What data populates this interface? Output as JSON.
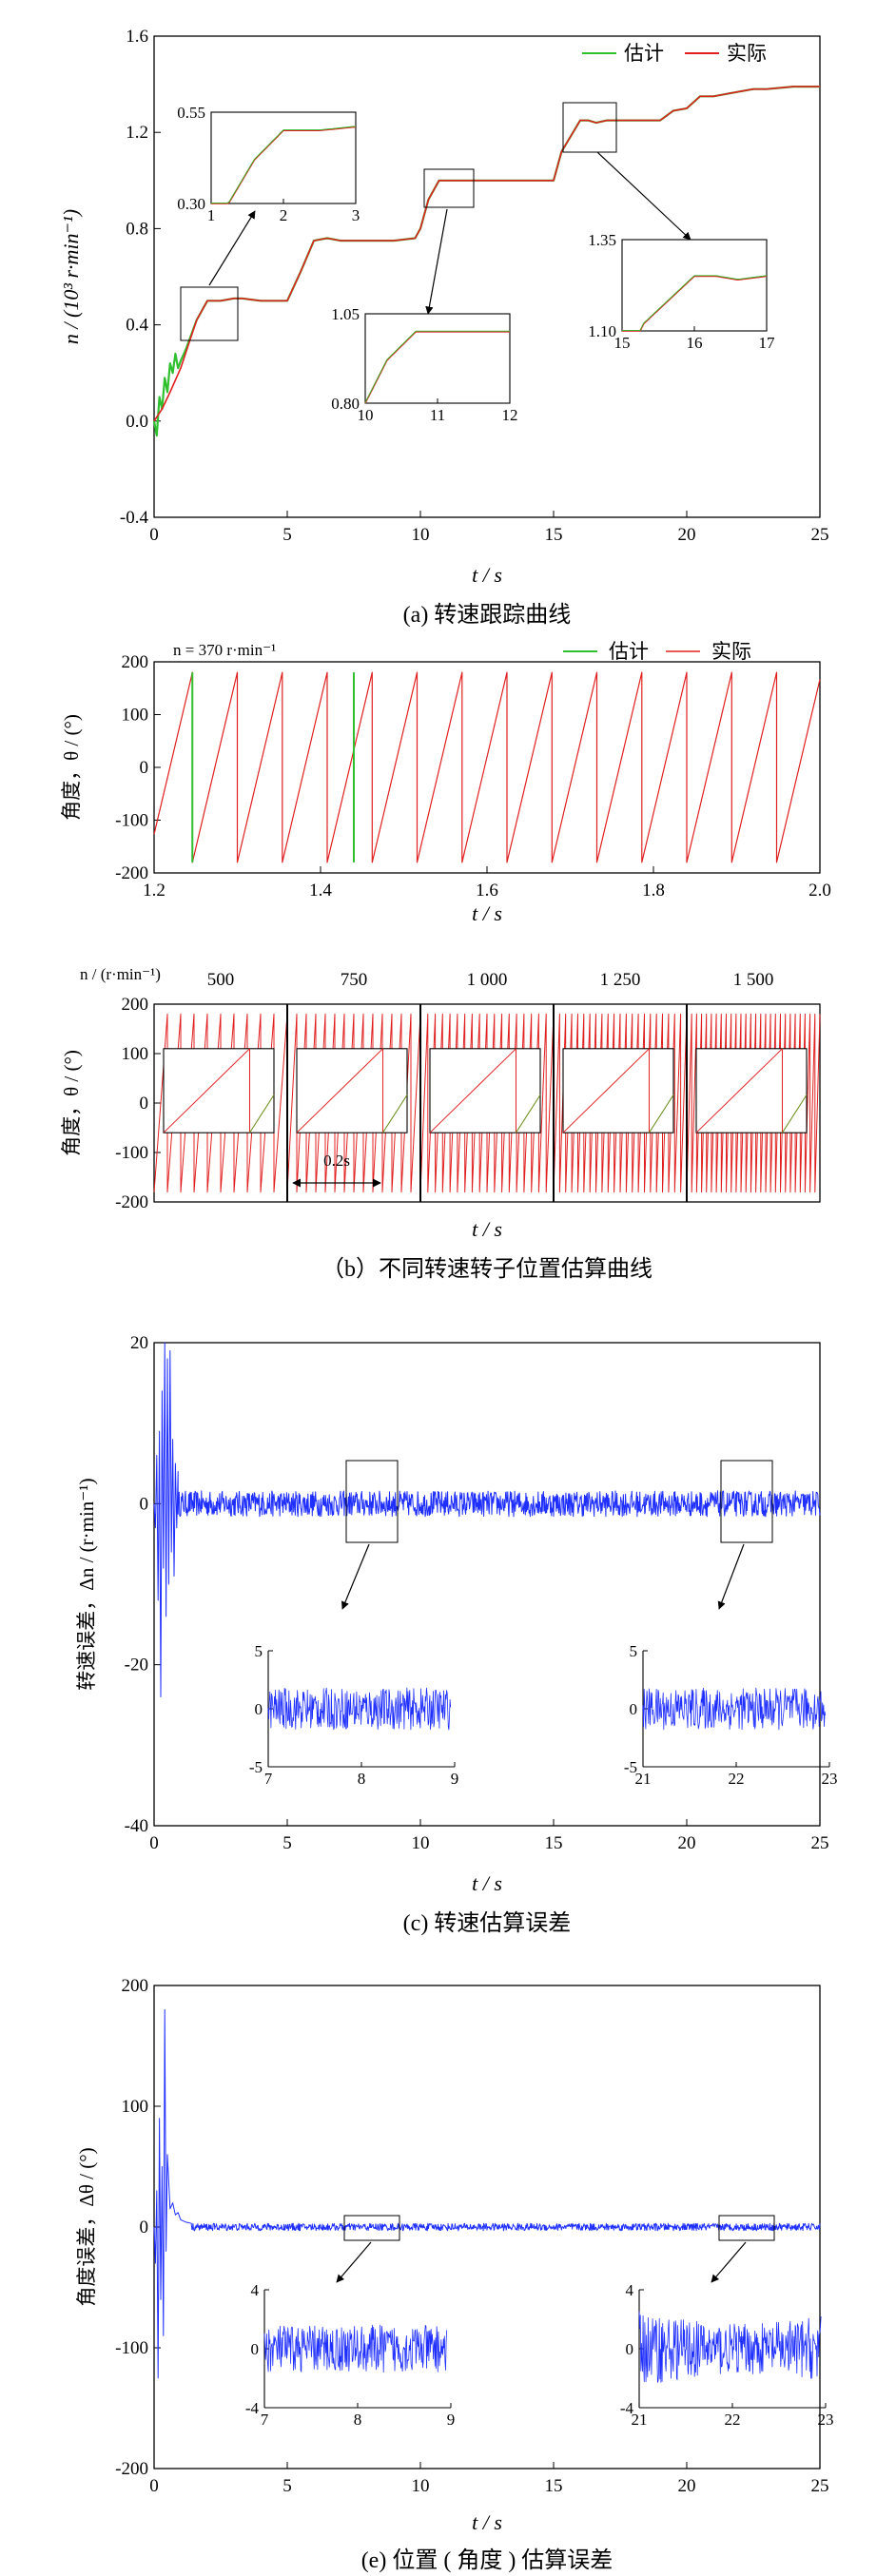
{
  "chart_data": [
    {
      "id": "speed_tracking",
      "type": "line",
      "caption": "(a)  转速跟踪曲线",
      "xlabel": "t / s",
      "ylabel": "n / (10³ r·min⁻¹)",
      "xlim": [
        0,
        25
      ],
      "ylim": [
        -0.4,
        1.6
      ],
      "xticks": [
        "0",
        "5",
        "10",
        "15",
        "20",
        "25"
      ],
      "yticks": [
        "-0.4",
        "0.0",
        "0.4",
        "0.8",
        "1.2",
        "1.6"
      ],
      "legend": {
        "position": "top-right",
        "entries": [
          "估计",
          "实际"
        ]
      },
      "series": [
        {
          "name": "估计",
          "color": "#2fbf2f",
          "x": [
            0.0,
            0.1,
            0.2,
            0.3,
            0.4,
            0.5,
            0.6,
            0.7,
            0.8,
            0.9,
            1.0,
            1.2,
            1.6,
            2.0,
            2.5,
            3.0,
            3.3,
            4.0,
            5.0,
            5.5,
            6.0,
            6.5,
            7.0,
            8.0,
            9.0,
            9.8,
            10.0,
            10.3,
            10.7,
            11.0,
            11.3,
            11.8,
            12.0,
            12.5,
            13.0,
            14.0,
            15.0,
            15.3,
            16.0,
            16.3,
            16.6,
            17.0,
            18.0,
            19.0,
            19.5,
            20.0,
            20.5,
            21.0,
            22.0,
            22.5,
            23.0,
            24.0,
            25.0
          ],
          "y": [
            0.0,
            -0.06,
            0.1,
            0.05,
            0.18,
            0.12,
            0.24,
            0.2,
            0.28,
            0.22,
            0.25,
            0.3,
            0.42,
            0.5,
            0.5,
            0.51,
            0.51,
            0.5,
            0.5,
            0.62,
            0.75,
            0.76,
            0.75,
            0.75,
            0.75,
            0.76,
            0.8,
            0.92,
            1.0,
            1.0,
            1.0,
            1.0,
            1.0,
            1.0,
            1.0,
            1.0,
            1.0,
            1.12,
            1.25,
            1.25,
            1.24,
            1.25,
            1.25,
            1.25,
            1.29,
            1.3,
            1.35,
            1.35,
            1.37,
            1.38,
            1.38,
            1.39,
            1.39
          ]
        },
        {
          "name": "实际",
          "color": "#e02020",
          "x": [
            0.0,
            0.3,
            0.6,
            1.0,
            1.3,
            1.6,
            2.0,
            2.5,
            3.0,
            3.3,
            4.0,
            5.0,
            5.5,
            6.0,
            6.5,
            7.0,
            8.0,
            9.0,
            9.8,
            10.0,
            10.3,
            10.7,
            11.0,
            11.3,
            11.8,
            12.0,
            12.5,
            13.0,
            14.0,
            15.0,
            15.3,
            16.0,
            16.3,
            16.6,
            17.0,
            18.0,
            19.0,
            19.5,
            20.0,
            20.5,
            21.0,
            22.0,
            22.5,
            23.0,
            24.0,
            25.0
          ],
          "y": [
            0.0,
            0.05,
            0.12,
            0.22,
            0.32,
            0.42,
            0.5,
            0.5,
            0.51,
            0.51,
            0.5,
            0.5,
            0.62,
            0.75,
            0.76,
            0.75,
            0.75,
            0.75,
            0.76,
            0.8,
            0.92,
            1.0,
            1.0,
            1.0,
            1.0,
            1.0,
            1.0,
            1.0,
            1.0,
            1.0,
            1.12,
            1.25,
            1.25,
            1.24,
            1.25,
            1.25,
            1.25,
            1.29,
            1.3,
            1.35,
            1.35,
            1.37,
            1.38,
            1.38,
            1.39,
            1.39
          ]
        }
      ],
      "insets": [
        {
          "xlim": [
            1,
            3
          ],
          "ylim": [
            0.3,
            0.55
          ],
          "xticks": [
            "1",
            "2",
            "3"
          ],
          "yticks": [
            "0.30",
            "0.55"
          ]
        },
        {
          "xlim": [
            10,
            12
          ],
          "ylim": [
            0.8,
            1.05
          ],
          "xticks": [
            "10",
            "11",
            "12"
          ],
          "yticks": [
            "0.80",
            "1.05"
          ]
        },
        {
          "xlim": [
            15,
            17
          ],
          "ylim": [
            1.1,
            1.35
          ],
          "xticks": [
            "15",
            "16",
            "17"
          ],
          "yticks": [
            "1.10",
            "1.35"
          ]
        }
      ]
    },
    {
      "id": "rotor_angle",
      "type": "line",
      "annotation": "n = 370 r·min⁻¹",
      "xlabel": "t / s",
      "ylabel": "角度，θ / (°)",
      "xlim": [
        1.2,
        2.0
      ],
      "ylim": [
        -200,
        200
      ],
      "xticks": [
        "1.2",
        "1.4",
        "1.6",
        "1.8",
        "2.0"
      ],
      "yticks": [
        "-200",
        "-100",
        "0",
        "100",
        "200"
      ],
      "legend": {
        "position": "top-right",
        "entries": [
          "估计",
          "实际"
        ]
      },
      "sawtooth_period_s": 0.054,
      "sawtooth_phase_s": 1.246,
      "range_deg": [
        -180,
        180
      ],
      "series": [
        {
          "name": "估计",
          "color": "#2fbf2f"
        },
        {
          "name": "实际",
          "color": "#e02020"
        }
      ]
    },
    {
      "id": "rotor_angle_speeds",
      "type": "line",
      "caption": "（b）不同转速转子位置估算曲线",
      "xlabel": "t / s",
      "ylabel": "角度，θ / (°)",
      "speed_axis_label": "n / (r·min⁻¹)",
      "ylim": [
        -200,
        200
      ],
      "yticks": [
        "-200",
        "-100",
        "0",
        "100",
        "200"
      ],
      "segments": [
        "500",
        "750",
        "1 000",
        "1 250",
        "1 500"
      ],
      "scale_bar": "0.2s"
    },
    {
      "id": "speed_error",
      "type": "line",
      "caption": "(c)  转速估算误差",
      "xlabel": "t / s",
      "ylabel": "转速误差，Δn / (r·min⁻¹)",
      "xlim": [
        0,
        25
      ],
      "ylim": [
        -40,
        20
      ],
      "xticks": [
        "0",
        "5",
        "10",
        "15",
        "20",
        "25"
      ],
      "yticks": [
        "-40",
        "-20",
        "0",
        "20"
      ],
      "series": [
        {
          "name": "误差",
          "color": "#1f2fff",
          "steady_band": [
            -1.6,
            1.6
          ]
        }
      ],
      "insets": [
        {
          "xlim": [
            7,
            9
          ],
          "ylim": [
            -5,
            5
          ],
          "xticks": [
            "7",
            "8",
            "9"
          ],
          "yticks": [
            "-5",
            "0",
            "5"
          ]
        },
        {
          "xlim": [
            21,
            23
          ],
          "ylim": [
            -5,
            5
          ],
          "xticks": [
            "21",
            "22",
            "23"
          ],
          "yticks": [
            "-5",
            "0",
            "5"
          ]
        }
      ]
    },
    {
      "id": "angle_error",
      "type": "line",
      "caption": "(e) 位置 ( 角度 ) 估算误差",
      "xlabel": "t / s",
      "ylabel": "角度误差，Δθ / (°)",
      "xlim": [
        0,
        25
      ],
      "ylim": [
        -200,
        200
      ],
      "xticks": [
        "0",
        "5",
        "10",
        "15",
        "20",
        "25"
      ],
      "yticks": [
        "-200",
        "-100",
        "0",
        "100",
        "200"
      ],
      "series": [
        {
          "name": "误差",
          "color": "#1f2fff",
          "steady_band": [
            -3,
            3
          ]
        }
      ],
      "insets": [
        {
          "xlim": [
            7,
            9
          ],
          "ylim": [
            -4,
            4
          ],
          "xticks": [
            "7",
            "8",
            "9"
          ],
          "yticks": [
            "-4",
            "0",
            "4"
          ]
        },
        {
          "xlim": [
            21,
            23
          ],
          "ylim": [
            -4,
            4
          ],
          "xticks": [
            "21",
            "22",
            "23"
          ],
          "yticks": [
            "-4",
            "0",
            "4"
          ]
        }
      ]
    }
  ]
}
